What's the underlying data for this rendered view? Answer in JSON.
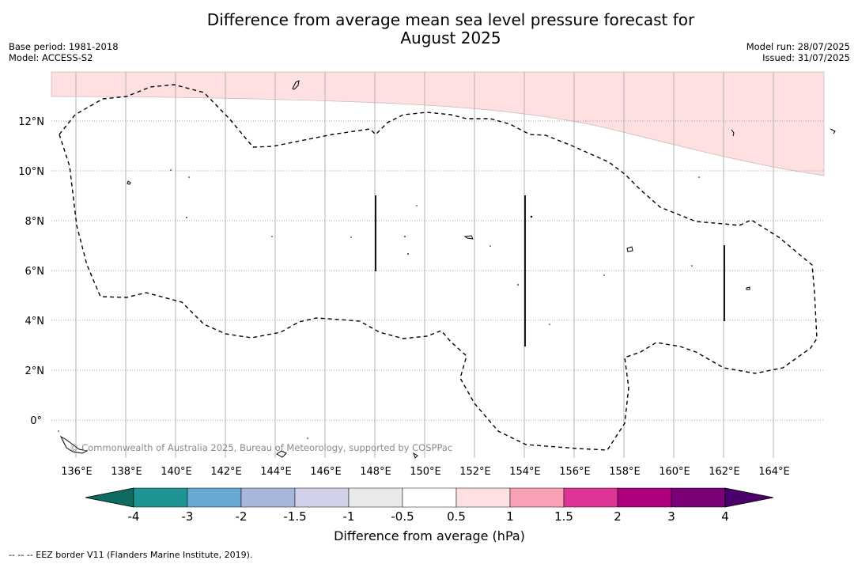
{
  "title": {
    "line1": "Difference from average mean sea level pressure forecast for",
    "line2": "August 2025"
  },
  "meta_left": {
    "base_period": "Base period: 1981-2018",
    "model": "Model: ACCESS-S2"
  },
  "meta_right": {
    "model_run": "Model run: 28/07/2025",
    "issued": "Issued: 31/07/2025"
  },
  "map": {
    "longitude_labels": [
      "136°E",
      "138°E",
      "140°E",
      "142°E",
      "144°E",
      "146°E",
      "148°E",
      "150°E",
      "152°E",
      "154°E",
      "156°E",
      "158°E",
      "160°E",
      "162°E",
      "164°E"
    ],
    "latitude_labels": [
      "12°N",
      "10°N",
      "8°N",
      "6°N",
      "4°N",
      "2°N",
      "0°"
    ],
    "copyright": "© Commonwealth of Australia 2025, Bureau of Meteorology, supported by COSPPac",
    "shading_color": "#fde0df",
    "boundary_style": "dashed"
  },
  "colorbar": {
    "ticks": [
      "-4",
      "-3",
      "-2",
      "-1.5",
      "-1",
      "-0.5",
      "0.5",
      "1",
      "1.5",
      "2",
      "3",
      "4"
    ],
    "colors": [
      "#0e6b5f",
      "#1f9494",
      "#66a9d1",
      "#a7b7db",
      "#d0d0e8",
      "#e9e9e9",
      "#ffffff",
      "#fde0df",
      "#f8a0b5",
      "#dd3497",
      "#ae017e",
      "#7a0177",
      "#49006a"
    ],
    "label": "Difference from average (hPa)"
  },
  "footnote": "--  --  -- EEZ border V11 (Flanders Marine Institute, 2019)."
}
